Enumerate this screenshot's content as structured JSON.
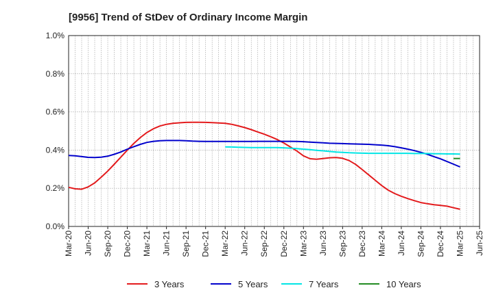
{
  "chart_data": {
    "type": "line",
    "title": "[9956]  Trend of StDev of Ordinary Income Margin",
    "xlabel": "",
    "ylabel": "",
    "x_tick_labels": [
      "Mar-20",
      "Jun-20",
      "Sep-20",
      "Dec-20",
      "Mar-21",
      "Jun-21",
      "Sep-21",
      "Dec-21",
      "Mar-22",
      "Jun-22",
      "Sep-22",
      "Dec-22",
      "Mar-23",
      "Jun-23",
      "Sep-23",
      "Dec-23",
      "Mar-24",
      "Jun-24",
      "Sep-24",
      "Dec-24",
      "Mar-25",
      "Jun-25"
    ],
    "y_tick_labels": [
      "0.0%",
      "0.2%",
      "0.4%",
      "0.6%",
      "0.8%",
      "1.0%"
    ],
    "ylim": [
      0,
      1.0
    ],
    "y_unit": "%",
    "grid": true,
    "legend_position": "bottom",
    "series": [
      {
        "name": "3 Years",
        "color": "#e31a1c",
        "x": [
          "2020-03",
          "2020-04",
          "2020-05",
          "2020-06",
          "2020-07",
          "2020-08",
          "2020-09",
          "2020-10",
          "2020-11",
          "2020-12",
          "2021-01",
          "2021-02",
          "2021-03",
          "2021-04",
          "2021-05",
          "2021-06",
          "2021-07",
          "2021-08",
          "2021-09",
          "2021-10",
          "2021-11",
          "2021-12",
          "2022-01",
          "2022-02",
          "2022-03",
          "2022-04",
          "2022-05",
          "2022-06",
          "2022-07",
          "2022-08",
          "2022-09",
          "2022-10",
          "2022-11",
          "2022-12",
          "2023-01",
          "2023-02",
          "2023-03",
          "2023-04",
          "2023-05",
          "2023-06",
          "2023-07",
          "2023-08",
          "2023-09",
          "2023-10",
          "2023-11",
          "2023-12",
          "2024-01",
          "2024-02",
          "2024-03",
          "2024-04",
          "2024-05",
          "2024-06",
          "2024-07",
          "2024-08",
          "2024-09",
          "2024-10",
          "2024-11",
          "2024-12",
          "2025-01",
          "2025-02",
          "2025-03"
        ],
        "values": [
          0.205,
          0.197,
          0.195,
          0.207,
          0.228,
          0.258,
          0.29,
          0.326,
          0.363,
          0.4,
          0.435,
          0.466,
          0.492,
          0.512,
          0.526,
          0.535,
          0.54,
          0.543,
          0.545,
          0.546,
          0.546,
          0.545,
          0.544,
          0.542,
          0.54,
          0.535,
          0.527,
          0.518,
          0.507,
          0.495,
          0.483,
          0.47,
          0.455,
          0.437,
          0.416,
          0.395,
          0.37,
          0.355,
          0.352,
          0.356,
          0.36,
          0.361,
          0.357,
          0.345,
          0.325,
          0.298,
          0.27,
          0.242,
          0.214,
          0.19,
          0.172,
          0.158,
          0.146,
          0.135,
          0.125,
          0.119,
          0.114,
          0.11,
          0.106,
          0.098,
          0.09
        ]
      },
      {
        "name": "5 Years",
        "color": "#0000cc",
        "x": [
          "2020-03",
          "2020-04",
          "2020-05",
          "2020-06",
          "2020-07",
          "2020-08",
          "2020-09",
          "2020-10",
          "2020-11",
          "2020-12",
          "2021-01",
          "2021-02",
          "2021-03",
          "2021-04",
          "2021-05",
          "2021-06",
          "2021-07",
          "2021-08",
          "2021-09",
          "2021-10",
          "2021-11",
          "2021-12",
          "2022-01",
          "2022-02",
          "2022-03",
          "2022-04",
          "2022-05",
          "2022-06",
          "2022-07",
          "2022-08",
          "2022-09",
          "2022-10",
          "2022-11",
          "2022-12",
          "2023-01",
          "2023-02",
          "2023-03",
          "2023-04",
          "2023-05",
          "2023-06",
          "2023-07",
          "2023-08",
          "2023-09",
          "2023-10",
          "2023-11",
          "2023-12",
          "2024-01",
          "2024-02",
          "2024-03",
          "2024-04",
          "2024-05",
          "2024-06",
          "2024-07",
          "2024-08",
          "2024-09",
          "2024-10",
          "2024-11",
          "2024-12",
          "2025-01",
          "2025-02",
          "2025-03"
        ],
        "values": [
          0.372,
          0.37,
          0.366,
          0.362,
          0.361,
          0.363,
          0.368,
          0.378,
          0.39,
          0.405,
          0.418,
          0.43,
          0.44,
          0.446,
          0.449,
          0.45,
          0.45,
          0.45,
          0.449,
          0.447,
          0.446,
          0.445,
          0.445,
          0.445,
          0.445,
          0.445,
          0.445,
          0.445,
          0.445,
          0.446,
          0.446,
          0.446,
          0.446,
          0.446,
          0.446,
          0.445,
          0.444,
          0.442,
          0.44,
          0.438,
          0.436,
          0.435,
          0.434,
          0.433,
          0.432,
          0.431,
          0.43,
          0.428,
          0.426,
          0.423,
          0.418,
          0.412,
          0.405,
          0.397,
          0.388,
          0.378,
          0.366,
          0.354,
          0.34,
          0.326,
          0.312
        ]
      },
      {
        "name": "7 Years",
        "color": "#00e5e5",
        "x": [
          "2022-03",
          "2022-04",
          "2022-05",
          "2022-06",
          "2022-07",
          "2022-08",
          "2022-09",
          "2022-10",
          "2022-11",
          "2022-12",
          "2023-01",
          "2023-02",
          "2023-03",
          "2023-04",
          "2023-05",
          "2023-06",
          "2023-07",
          "2023-08",
          "2023-09",
          "2023-10",
          "2023-11",
          "2023-12",
          "2024-01",
          "2024-02",
          "2024-03",
          "2024-04",
          "2024-05",
          "2024-06",
          "2024-07",
          "2024-08",
          "2024-09",
          "2024-10",
          "2024-11",
          "2024-12",
          "2025-01",
          "2025-02",
          "2025-03"
        ],
        "values": [
          0.417,
          0.416,
          0.415,
          0.414,
          0.413,
          0.413,
          0.413,
          0.413,
          0.413,
          0.412,
          0.41,
          0.408,
          0.405,
          0.402,
          0.399,
          0.396,
          0.393,
          0.39,
          0.388,
          0.386,
          0.385,
          0.384,
          0.383,
          0.383,
          0.383,
          0.383,
          0.383,
          0.383,
          0.383,
          0.382,
          0.382,
          0.382,
          0.381,
          0.381,
          0.38,
          0.38,
          0.379
        ]
      },
      {
        "name": "10 Years",
        "color": "#228b22",
        "x": [
          "2025-02",
          "2025-03"
        ],
        "values": [
          0.356,
          0.356
        ]
      }
    ]
  }
}
